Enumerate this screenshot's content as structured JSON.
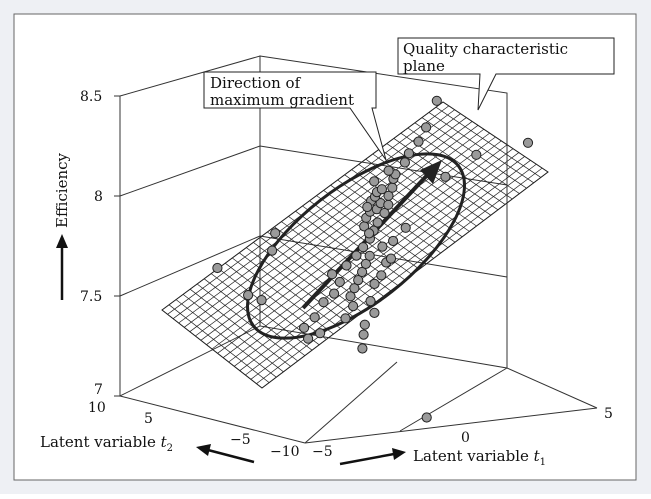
{
  "colors": {
    "panel_bg": "#eef0f4",
    "plot_bg": "#ffffff",
    "grid_line": "#333333",
    "point_fill": "#9a9a9a",
    "point_stroke": "#222222",
    "annotation_stroke": "#222222"
  },
  "chart_data": {
    "type": "scatter",
    "subtype": "3d-scatter-with-fitted-plane",
    "title": "",
    "zlabel": "Efficiency",
    "x1label_prefix": "Latent variable ",
    "x1label_var": "t",
    "x1label_sub": "1",
    "x2label_prefix": "Latent variable ",
    "x2label_var": "t",
    "x2label_sub": "2",
    "t1_ticks": [
      "−5",
      "0",
      "5"
    ],
    "t2_ticks": [
      "10",
      "5",
      "−5",
      "−10"
    ],
    "z_ticks": [
      "7",
      "7.5",
      "8",
      "8.5"
    ],
    "t1_range": [
      -5,
      5
    ],
    "t2_range": [
      -10,
      10
    ],
    "z_range": [
      7,
      8.5
    ],
    "annotations": {
      "plane_label_line1": "Quality characteristic",
      "plane_label_line2": "plane",
      "gradient_label_line1": "Direction of",
      "gradient_label_line2": "maximum gradient"
    },
    "points_t1_t2_z": [
      [
        -4.2,
        2.0,
        7.72
      ],
      [
        -3.4,
        1.2,
        7.58
      ],
      [
        -3.0,
        1.0,
        7.55
      ],
      [
        -2.8,
        0.5,
        7.8
      ],
      [
        -2.6,
        0.8,
        7.88
      ],
      [
        -1.0,
        1.0,
        7.35
      ],
      [
        -0.5,
        -2.0,
        7.3
      ],
      [
        -1.5,
        0.0,
        7.45
      ],
      [
        -1.2,
        0.0,
        7.52
      ],
      [
        -0.9,
        -0.2,
        7.56
      ],
      [
        -0.8,
        -0.5,
        7.62
      ],
      [
        -1.0,
        -0.3,
        7.66
      ],
      [
        -0.7,
        -0.8,
        7.44
      ],
      [
        -0.5,
        -1.0,
        7.5
      ],
      [
        -0.6,
        -0.6,
        7.7
      ],
      [
        -0.4,
        -0.4,
        7.54
      ],
      [
        -0.3,
        -0.5,
        7.58
      ],
      [
        -0.2,
        -0.6,
        7.62
      ],
      [
        -0.1,
        -0.7,
        7.66
      ],
      [
        0.0,
        -0.8,
        7.7
      ],
      [
        0.1,
        -0.9,
        7.74
      ],
      [
        -0.2,
        -0.4,
        7.74
      ],
      [
        0.0,
        -0.5,
        7.78
      ],
      [
        0.2,
        -0.6,
        7.82
      ],
      [
        0.3,
        -0.7,
        7.86
      ],
      [
        0.4,
        -0.8,
        7.9
      ],
      [
        0.1,
        -0.3,
        7.88
      ],
      [
        0.2,
        -0.2,
        7.92
      ],
      [
        0.3,
        -0.3,
        7.95
      ],
      [
        0.5,
        -0.4,
        7.96
      ],
      [
        0.6,
        -0.5,
        7.99
      ],
      [
        0.7,
        -0.6,
        7.94
      ],
      [
        0.8,
        -0.7,
        7.98
      ],
      [
        0.4,
        -0.1,
        8.0
      ],
      [
        0.5,
        -0.2,
        8.02
      ],
      [
        0.3,
        0.0,
        7.97
      ],
      [
        0.6,
        -0.1,
        8.04
      ],
      [
        0.9,
        -0.4,
        8.02
      ],
      [
        1.0,
        -0.5,
        8.06
      ],
      [
        1.1,
        -0.3,
        8.1
      ],
      [
        0.8,
        0.0,
        8.05
      ],
      [
        1.2,
        -0.2,
        8.12
      ],
      [
        0.2,
        -1.1,
        7.6
      ],
      [
        0.4,
        -1.2,
        7.64
      ],
      [
        0.0,
        -1.3,
        7.52
      ],
      [
        -0.1,
        -1.0,
        7.4
      ],
      [
        0.1,
        -1.4,
        7.46
      ],
      [
        0.5,
        -1.0,
        7.78
      ],
      [
        0.6,
        -1.1,
        7.7
      ],
      [
        1.4,
        -0.6,
        8.18
      ],
      [
        1.6,
        -0.4,
        8.22
      ],
      [
        1.8,
        -0.8,
        8.28
      ],
      [
        2.0,
        -1.0,
        8.35
      ],
      [
        2.3,
        -1.2,
        8.48
      ],
      [
        2.5,
        -1.5,
        8.1
      ],
      [
        3.4,
        -2.0,
        8.2
      ],
      [
        4.6,
        -3.8,
        8.26
      ],
      [
        -0.2,
        -8.0,
        7.02
      ],
      [
        -1.6,
        0.4,
        7.34
      ],
      [
        -1.8,
        0.2,
        7.4
      ],
      [
        1.3,
        -1.0,
        7.86
      ],
      [
        0.9,
        -0.9,
        7.8
      ],
      [
        0.7,
        -1.3,
        7.72
      ],
      [
        -0.3,
        -1.5,
        7.36
      ],
      [
        0.3,
        -0.2,
        7.84
      ],
      [
        1.0,
        -0.1,
        8.14
      ],
      [
        0.6,
        0.2,
        8.09
      ]
    ]
  }
}
